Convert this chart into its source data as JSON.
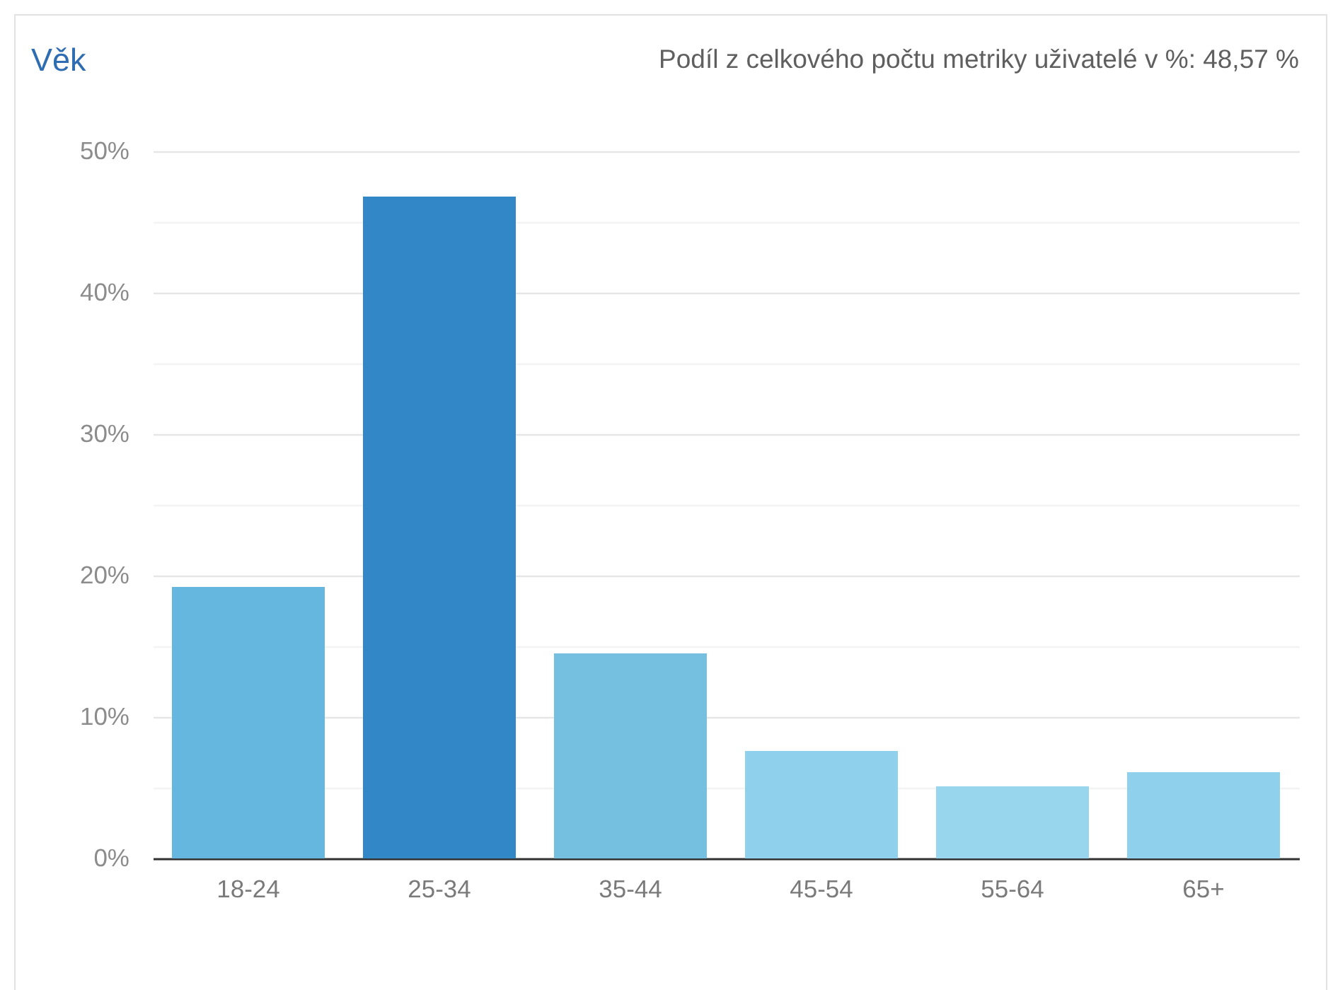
{
  "chart_data": {
    "type": "bar",
    "title": "Věk",
    "subtitle": "Podíl z celkového počtu metriky uživatelé v %: 48,57 %",
    "categories": [
      "18-24",
      "25-34",
      "35-44",
      "45-54",
      "55-64",
      "65+"
    ],
    "values": [
      19.2,
      46.8,
      14.5,
      7.6,
      5.1,
      6.1
    ],
    "colors": [
      "#65b7e0",
      "#3288c7",
      "#75c0e0",
      "#8fd1ec",
      "#98d6ee",
      "#8fd1ec"
    ],
    "ylim": [
      0,
      50
    ],
    "yticks": [
      {
        "value": 0,
        "label": "0%"
      },
      {
        "value": 5,
        "label": null
      },
      {
        "value": 10,
        "label": "10%"
      },
      {
        "value": 15,
        "label": null
      },
      {
        "value": 20,
        "label": "20%"
      },
      {
        "value": 25,
        "label": null
      },
      {
        "value": 30,
        "label": "30%"
      },
      {
        "value": 35,
        "label": null
      },
      {
        "value": 40,
        "label": "40%"
      },
      {
        "value": 45,
        "label": null
      },
      {
        "value": 50,
        "label": "50%"
      }
    ],
    "grid": "y"
  }
}
